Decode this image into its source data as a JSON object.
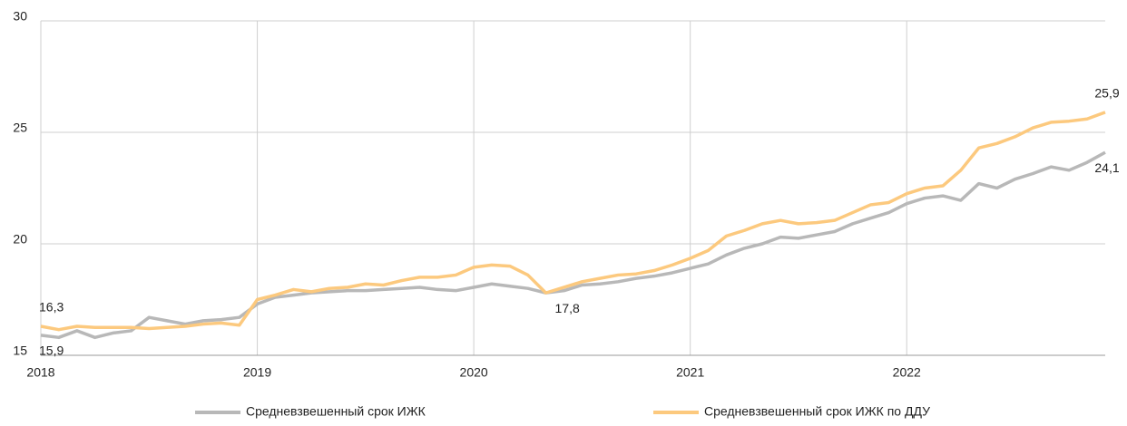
{
  "chart_data": {
    "type": "line",
    "x": [
      2018,
      2018.083,
      2018.167,
      2018.25,
      2018.333,
      2018.417,
      2018.5,
      2018.583,
      2018.667,
      2018.75,
      2018.833,
      2018.917,
      2019,
      2019.083,
      2019.167,
      2019.25,
      2019.333,
      2019.417,
      2019.5,
      2019.583,
      2019.667,
      2019.75,
      2019.833,
      2019.917,
      2020,
      2020.083,
      2020.167,
      2020.25,
      2020.333,
      2020.417,
      2020.5,
      2020.583,
      2020.667,
      2020.75,
      2020.833,
      2020.917,
      2021,
      2021.083,
      2021.167,
      2021.25,
      2021.333,
      2021.417,
      2021.5,
      2021.583,
      2021.667,
      2021.75,
      2021.833,
      2021.917,
      2022,
      2022.083,
      2022.167,
      2022.25,
      2022.333,
      2022.417,
      2022.5,
      2022.583,
      2022.667,
      2022.75,
      2022.833,
      2022.917
    ],
    "series": [
      {
        "name": "Средневзвешенный срок ИЖК",
        "color": "#b8b8b8",
        "values": [
          15.9,
          15.8,
          16.1,
          15.8,
          16.0,
          16.1,
          16.7,
          16.55,
          16.4,
          16.55,
          16.6,
          16.7,
          17.3,
          17.6,
          17.7,
          17.8,
          17.85,
          17.9,
          17.9,
          17.95,
          18.0,
          18.05,
          17.95,
          17.9,
          18.05,
          18.2,
          18.1,
          18.0,
          17.8,
          17.9,
          18.15,
          18.2,
          18.3,
          18.45,
          18.55,
          18.7,
          18.9,
          19.1,
          19.5,
          19.8,
          20.0,
          20.3,
          20.25,
          20.4,
          20.55,
          20.9,
          21.15,
          21.4,
          21.8,
          22.05,
          22.15,
          21.95,
          22.7,
          22.5,
          22.9,
          23.15,
          23.45,
          23.3,
          23.65,
          24.1
        ],
        "value_labels": [
          "15,9",
          null,
          null,
          null,
          null,
          null,
          null,
          null,
          null,
          null,
          null,
          null,
          null,
          null,
          null,
          null,
          null,
          null,
          null,
          null,
          null,
          null,
          null,
          null,
          null,
          null,
          null,
          null,
          "17,8",
          null,
          null,
          null,
          null,
          null,
          null,
          null,
          null,
          null,
          null,
          null,
          null,
          null,
          null,
          null,
          null,
          null,
          null,
          null,
          null,
          null,
          null,
          null,
          null,
          null,
          null,
          null,
          null,
          null,
          null,
          "24,1"
        ]
      },
      {
        "name": "Средневзвешенный срок ИЖК по ДДУ",
        "color": "#fcc97e",
        "values": [
          16.3,
          16.15,
          16.3,
          16.25,
          16.25,
          16.25,
          16.2,
          16.25,
          16.3,
          16.4,
          16.45,
          16.35,
          17.5,
          17.7,
          17.95,
          17.85,
          18.0,
          18.05,
          18.2,
          18.15,
          18.35,
          18.5,
          18.5,
          18.6,
          18.95,
          19.05,
          19.0,
          18.6,
          17.8,
          18.05,
          18.3,
          18.45,
          18.6,
          18.65,
          18.8,
          19.05,
          19.35,
          19.7,
          20.35,
          20.6,
          20.9,
          21.05,
          20.9,
          20.95,
          21.05,
          21.4,
          21.75,
          21.85,
          22.25,
          22.5,
          22.6,
          23.3,
          24.3,
          24.5,
          24.8,
          25.2,
          25.45,
          25.5,
          25.6,
          25.9
        ],
        "value_labels": [
          "16,3",
          null,
          null,
          null,
          null,
          null,
          null,
          null,
          null,
          null,
          null,
          null,
          null,
          null,
          null,
          null,
          null,
          null,
          null,
          null,
          null,
          null,
          null,
          null,
          null,
          null,
          null,
          null,
          null,
          null,
          null,
          null,
          null,
          null,
          null,
          null,
          null,
          null,
          null,
          null,
          null,
          null,
          null,
          null,
          null,
          null,
          null,
          null,
          null,
          null,
          null,
          null,
          null,
          null,
          null,
          null,
          null,
          null,
          null,
          "25,9"
        ]
      }
    ],
    "xlim": [
      2018,
      2022.917
    ],
    "xticks": [
      2018,
      2019,
      2020,
      2021,
      2022
    ],
    "ylim": [
      15,
      30
    ],
    "yticks": [
      15,
      20,
      25,
      30
    ],
    "grid": true,
    "legend": "bottom"
  }
}
